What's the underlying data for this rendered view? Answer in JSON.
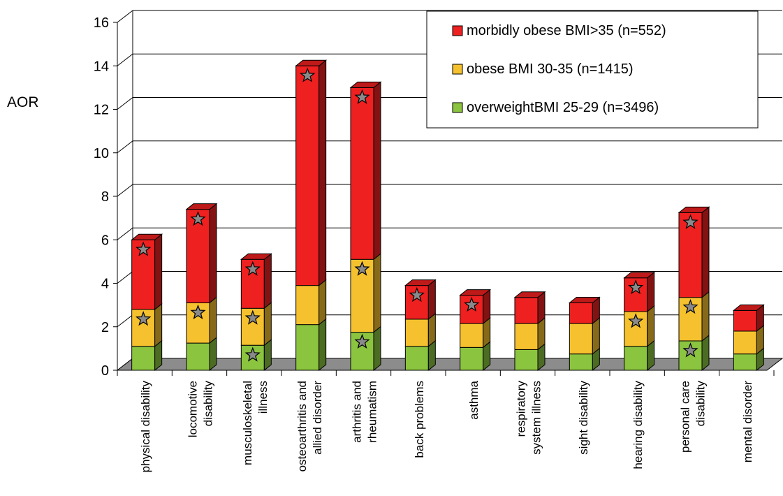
{
  "chart_data": {
    "type": "bar",
    "stacked": true,
    "three_d": true,
    "ylabel": "AOR",
    "xlabel": "",
    "title": "",
    "ylim": [
      0,
      16
    ],
    "yticks": [
      0,
      2,
      4,
      6,
      8,
      10,
      12,
      14,
      16
    ],
    "grid": true,
    "legend_position": "top-right",
    "categories": [
      "physical disability",
      "locomotive disability",
      "musculoskeletal illness",
      "osteoarthritis and allied disorder",
      "arthritis and rheumatism",
      "back problems",
      "asthma",
      "respiratory system illness",
      "sight disability",
      "hearing disability",
      "personal care disability",
      "mental disorder"
    ],
    "category_lines": [
      [
        "physical disability"
      ],
      [
        "locomotive",
        "disability"
      ],
      [
        "musculoskeletal",
        "illness"
      ],
      [
        "osteoarthritis and",
        "allied disorder"
      ],
      [
        "arthritis and",
        "rheumatism"
      ],
      [
        "back problems"
      ],
      [
        "asthma"
      ],
      [
        "respiratory",
        "system illness"
      ],
      [
        "sight disability"
      ],
      [
        "hearing disability"
      ],
      [
        "personal care",
        "disability"
      ],
      [
        "mental disorder"
      ]
    ],
    "series": [
      {
        "name": "overweightBMI 25-29 (n=3496)",
        "color": "#8BC43F",
        "values": [
          1.1,
          1.25,
          1.15,
          2.1,
          1.75,
          1.1,
          1.05,
          0.95,
          0.75,
          1.1,
          1.35,
          0.75
        ],
        "significant": [
          false,
          false,
          true,
          false,
          true,
          false,
          false,
          false,
          false,
          false,
          true,
          false
        ]
      },
      {
        "name": "obese BMI 30-35 (n=1415)",
        "color": "#F5C12E",
        "values": [
          1.7,
          1.85,
          1.7,
          1.8,
          3.35,
          1.25,
          1.1,
          1.2,
          1.4,
          1.6,
          2.0,
          1.05
        ],
        "significant": [
          true,
          true,
          true,
          false,
          true,
          false,
          false,
          false,
          false,
          true,
          true,
          false
        ]
      },
      {
        "name": "morbidly obese BMI>35 (n=552)",
        "color": "#EE2020",
        "values": [
          3.2,
          4.3,
          2.25,
          10.1,
          7.9,
          1.55,
          1.3,
          1.2,
          0.95,
          1.55,
          3.9,
          0.95
        ],
        "significant": [
          true,
          true,
          true,
          true,
          true,
          true,
          true,
          false,
          false,
          true,
          true,
          false
        ]
      }
    ],
    "legend_entries": [
      "morbidly obese BMI>35 (n=552)",
      "obese BMI 30-35 (n=1415)",
      "overweightBMI 25-29 (n=3496)"
    ],
    "colors": {
      "floor": "#8C8C8C",
      "star_fill": "#8A8A8A",
      "grid": "#000000"
    }
  }
}
